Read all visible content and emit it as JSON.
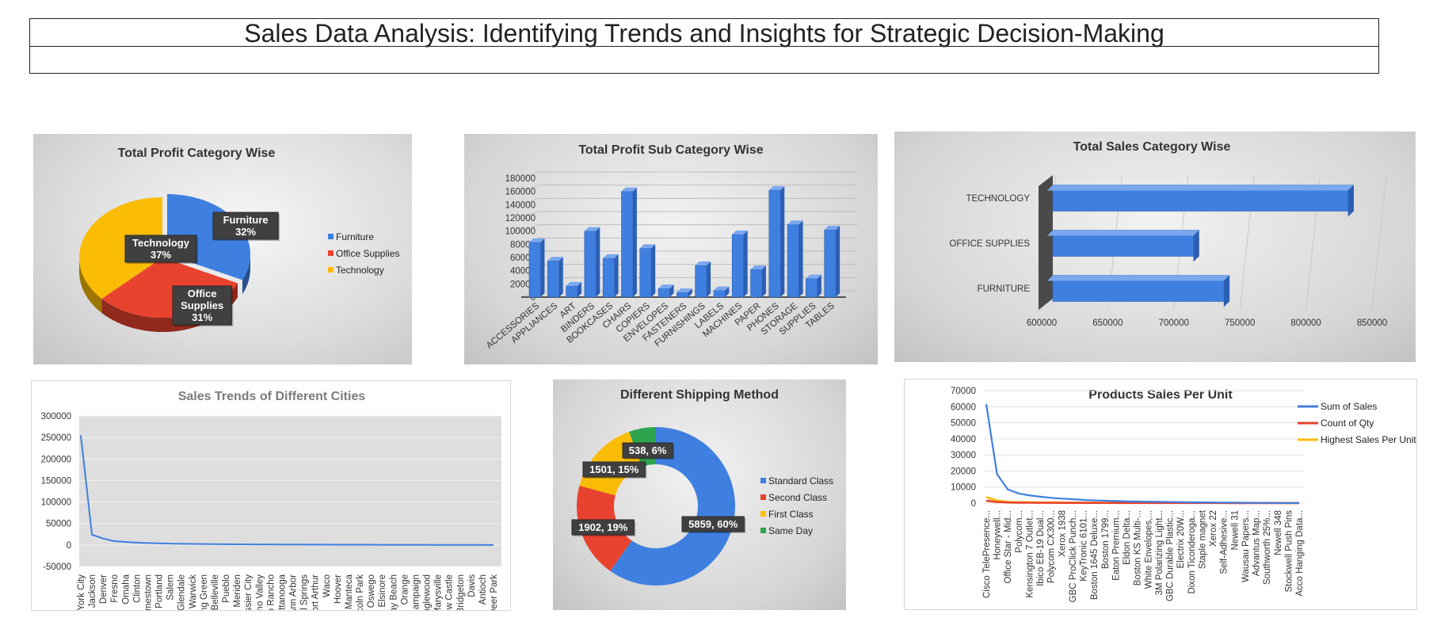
{
  "page_title": "Sales Data Analysis: Identifying Trends and Insights for Strategic Decision-Making",
  "colors": {
    "blue": "#3f7fe0",
    "red": "#e8432f",
    "yellow": "#fbbc05",
    "green": "#2ea44f"
  },
  "chart_data": [
    {
      "id": "profit-category",
      "type": "pie",
      "title": "Total Profit Category Wise",
      "categories": [
        "Furniture",
        "Office Supplies",
        "Technology"
      ],
      "values": [
        32,
        31,
        37
      ],
      "labels": [
        [
          "Furniture",
          "32%"
        ],
        [
          "Office",
          "Supplies",
          "31%"
        ],
        [
          "Technology",
          "37%"
        ]
      ],
      "colors": [
        "#3f7fe0",
        "#e8432f",
        "#fbbc05"
      ],
      "legend": "right"
    },
    {
      "id": "profit-subcategory",
      "type": "bar",
      "title": "Total Profit Sub Category Wise",
      "categories": [
        "ACCESSORIES",
        "APPLIANCES",
        "ART",
        "BINDERS",
        "BOOKCASES",
        "CHAIRS",
        "COPIERS",
        "ENVELOPES",
        "FASTENERS",
        "FURNISHINGS",
        "LABELS",
        "MACHINES",
        "PAPER",
        "PHONES",
        "STORAGE",
        "SUPPLIES",
        "TABLES"
      ],
      "values": [
        83000,
        55000,
        17000,
        100000,
        59000,
        160000,
        74000,
        13000,
        7000,
        48000,
        10000,
        95000,
        42000,
        162000,
        110000,
        28000,
        102000
      ],
      "ylim": [
        0,
        180000
      ],
      "yticks": [
        "0",
        "20000",
        "40000",
        "60000",
        "80000",
        "100000",
        "120000",
        "140000",
        "160000",
        "180000"
      ]
    },
    {
      "id": "sales-category",
      "type": "bar",
      "orientation": "horizontal",
      "title": "Total Sales Category Wise",
      "categories": [
        "TECHNOLOGY",
        "OFFICE SUPPLIES",
        "FURNITURE"
      ],
      "values": [
        836000,
        719000,
        742000
      ],
      "xlim": [
        600000,
        850000
      ],
      "xticks": [
        "600000",
        "650000",
        "700000",
        "750000",
        "800000",
        "850000"
      ]
    },
    {
      "id": "city-trend",
      "type": "line",
      "title": "Sales Trends of Different Cities",
      "x": [
        "New York City",
        "Jackson",
        "Denver",
        "Fresno",
        "Omaha",
        "Clinton",
        "Jamestown",
        "Portland",
        "Salem",
        "Glendale",
        "Warwick",
        "Bowling Green",
        "Belleville",
        "Pueblo",
        "Meriden",
        "Bossier City",
        "Moreno Valley",
        "Rio Rancho",
        "Chattanooga",
        "Ann Arbor",
        "Coral Springs",
        "Port Arthur",
        "Waco",
        "Hoover",
        "Manteca",
        "Lincoln Park",
        "Oswego",
        "Lake Elsinore",
        "Delray Beach",
        "Orange",
        "Champaign",
        "Englewood",
        "Marysville",
        "New Castle",
        "Bridgeton",
        "Davis",
        "Antioch",
        "Deer Park"
      ],
      "y": [
        255000,
        24000,
        15000,
        9000,
        7000,
        5500,
        4500,
        3800,
        3200,
        2800,
        2500,
        2200,
        2000,
        1800,
        1600,
        1500,
        1400,
        1300,
        1200,
        1100,
        1000,
        900,
        800,
        700,
        650,
        600,
        550,
        500,
        450,
        400,
        360,
        320,
        280,
        240,
        200,
        160,
        120,
        80
      ],
      "ylim": [
        -50000,
        300000
      ],
      "yticks": [
        "-50000",
        "0",
        "50000",
        "100000",
        "150000",
        "200000",
        "250000",
        "300000"
      ]
    },
    {
      "id": "shipping",
      "type": "pie",
      "variant": "doughnut",
      "title": "Different Shipping Method",
      "categories": [
        "Standard Class",
        "Second Class",
        "First Class",
        "Same Day"
      ],
      "values": [
        5859,
        1902,
        1501,
        538
      ],
      "labels": [
        "5859, 60%",
        "1902, 19%",
        "1501, 15%",
        "538, 6%"
      ],
      "colors": [
        "#3f7fe0",
        "#e8432f",
        "#fbbc05",
        "#2ea44f"
      ],
      "legend": "right"
    },
    {
      "id": "products",
      "type": "line",
      "title": "Products Sales Per Unit",
      "x": [
        "Cisco TelePresence...",
        "Honeywell...",
        "Office Star - Mid...",
        "Polycom...",
        "Kensington 7 Outlet...",
        "Ibico EB-19 Dual...",
        "Polycom CX300...",
        "Xerox 1938",
        "GBC ProClick Punch...",
        "KeyTronic 6101...",
        "Boston 1645 Deluxe...",
        "Boston 1799...",
        "Eaton Premium...",
        "Eldon Delta...",
        "Boston KS Multi-...",
        "White Envelopes,...",
        "3M Polarizing Light...",
        "GBC Durable Plastic...",
        "Electrix 20W...",
        "Dixon Ticonderoga...",
        "Staple magnet",
        "Xerox 22",
        "Self-Adhesive...",
        "Newell 31",
        "Wausau Papers...",
        "Advantus Map...",
        "Southworth 25%...",
        "Newell 348",
        "Stockwell Push Pins",
        "Acco Hanging Data..."
      ],
      "series": [
        {
          "name": "Sum of Sales",
          "color": "#3f7fe0",
          "values": [
            61600,
            18000,
            8500,
            6000,
            4800,
            4000,
            3300,
            2800,
            2400,
            2000,
            1700,
            1500,
            1300,
            1100,
            1000,
            900,
            800,
            700,
            600,
            500,
            450,
            400,
            350,
            300,
            250,
            200,
            150,
            100,
            60,
            30
          ]
        },
        {
          "name": "Count of Qty",
          "color": "#e8432f",
          "values": [
            1500,
            700,
            400,
            300,
            250,
            200,
            180,
            160,
            150,
            140,
            130,
            120,
            110,
            100,
            100,
            90,
            90,
            80,
            80,
            70,
            70,
            60,
            60,
            50,
            50,
            40,
            40,
            30,
            30,
            20
          ]
        },
        {
          "name": "Highest Sales Per Unit",
          "color": "#fbbc05",
          "values": [
            3700,
            1600,
            800,
            600,
            500,
            420,
            380,
            340,
            300,
            280,
            260,
            240,
            220,
            200,
            190,
            180,
            170,
            160,
            150,
            140,
            130,
            120,
            110,
            100,
            90,
            80,
            70,
            60,
            50,
            40
          ]
        }
      ],
      "ylim": [
        0,
        70000
      ],
      "yticks": [
        "0",
        "10000",
        "20000",
        "30000",
        "40000",
        "50000",
        "60000",
        "70000"
      ],
      "legend": "right"
    }
  ]
}
